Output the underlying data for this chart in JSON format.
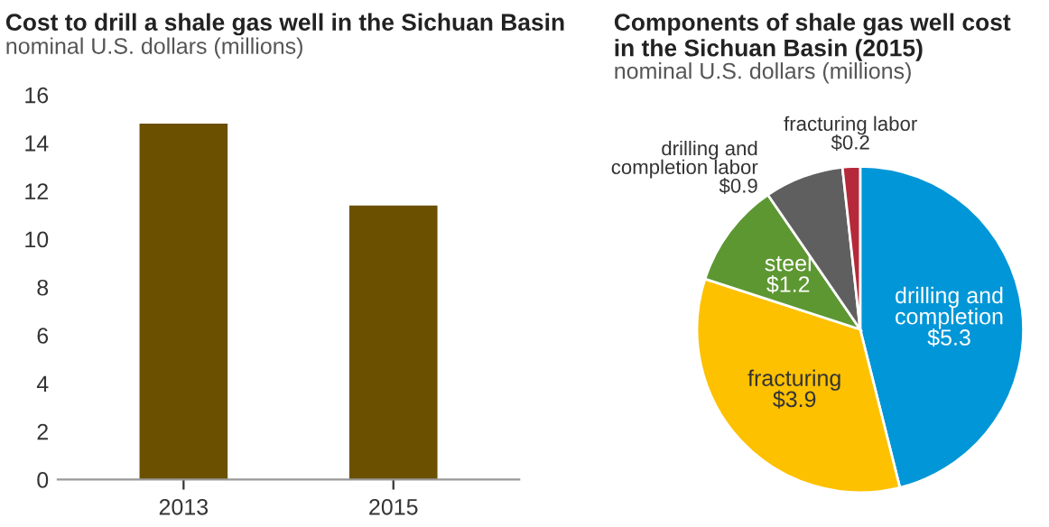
{
  "chart_data": [
    {
      "type": "bar",
      "title": "Cost to drill a shale gas well in the Sichuan Basin",
      "subtitle": "nominal U.S. dollars (millions)",
      "categories": [
        "2013",
        "2015"
      ],
      "values": [
        14.8,
        11.4
      ],
      "color": "#6b5000",
      "ylim": [
        0,
        16
      ],
      "yticks": [
        0,
        2,
        4,
        6,
        8,
        10,
        12,
        14,
        16
      ],
      "grid": false
    },
    {
      "type": "pie",
      "title": "Components of shale gas well cost in the Sichuan Basin (2015)",
      "subtitle": "nominal U.S. dollars (millions)",
      "categories": [
        "drilling and\ncompletion",
        "fracturing",
        "steel",
        "drilling and\ncompletion labor",
        "fracturing labor"
      ],
      "values": [
        5.3,
        3.9,
        1.2,
        0.9,
        0.2
      ],
      "colors": [
        "#0096d7",
        "#fdc100",
        "#5d9732",
        "#5f5f5f",
        "#b5293a"
      ],
      "value_labels": [
        "$5.3",
        "$3.9",
        "$1.2",
        "$0.9",
        "$0.2"
      ]
    }
  ]
}
